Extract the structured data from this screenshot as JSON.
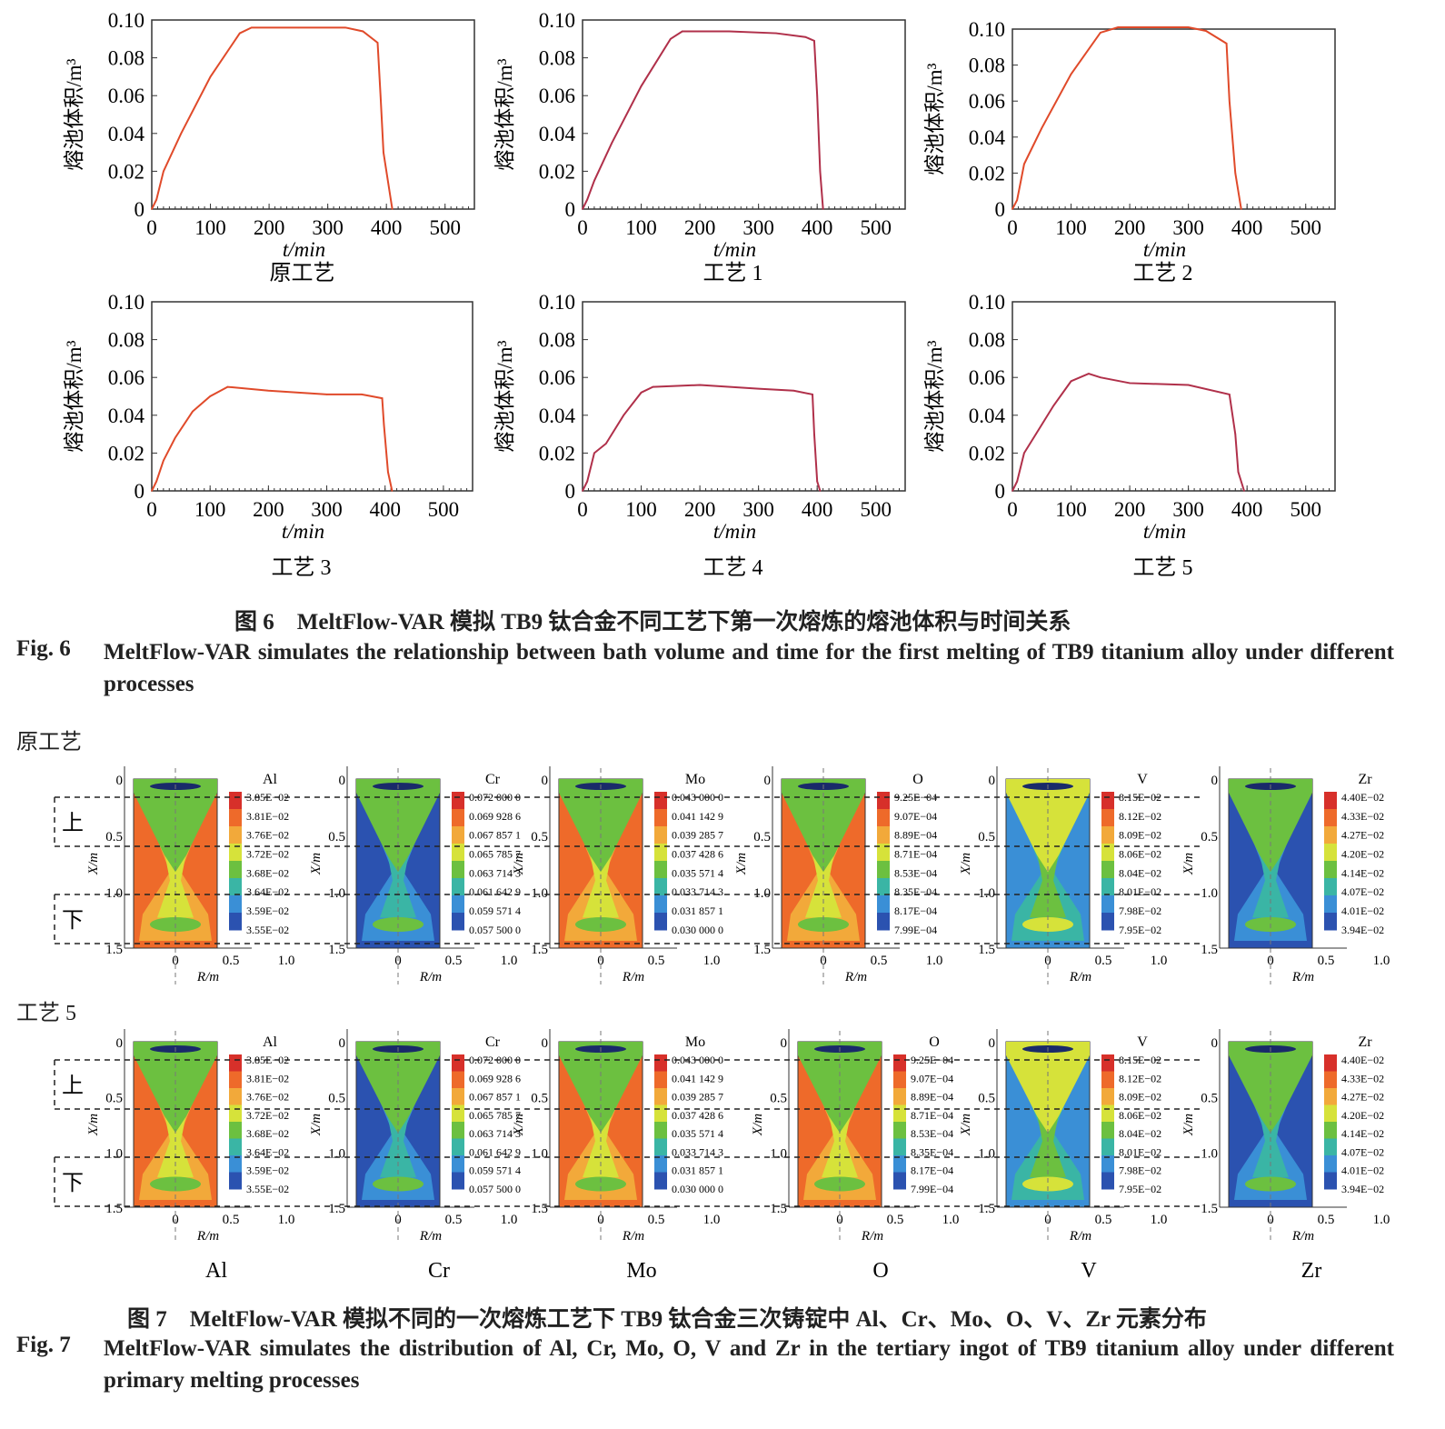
{
  "fig6": {
    "caption_cn": "图 6　MeltFlow-VAR 模拟 TB9 钛合金不同工艺下第一次熔炼的熔池体积与时间关系",
    "caption_en_label": "Fig. 6",
    "caption_en": "MeltFlow-VAR simulates the relationship between bath volume and time for the first melting of TB9 titanium alloy under different processes"
  },
  "chart_data": [
    {
      "type": "line",
      "title": "原工艺",
      "xlabel": "t/min",
      "ylabel": "熔池体积/m³",
      "xlim": [
        0,
        550
      ],
      "ylim": [
        0,
        0.1
      ],
      "xticks": [
        0,
        100,
        200,
        300,
        400,
        500
      ],
      "yticks": [
        "0",
        "0.02",
        "0.04",
        "0.06",
        "0.08",
        "0.10"
      ],
      "color": "#e04a2a",
      "x": [
        0,
        8,
        20,
        50,
        100,
        150,
        170,
        250,
        330,
        360,
        385,
        390,
        395,
        410
      ],
      "y": [
        0,
        0.005,
        0.02,
        0.04,
        0.07,
        0.093,
        0.096,
        0.096,
        0.096,
        0.094,
        0.088,
        0.06,
        0.03,
        0
      ]
    },
    {
      "type": "line",
      "title": "工艺 1",
      "xlabel": "t/min",
      "ylabel": "熔池体积/m³",
      "xlim": [
        0,
        550
      ],
      "ylim": [
        0,
        0.1
      ],
      "xticks": [
        0,
        100,
        200,
        300,
        400,
        500
      ],
      "yticks": [
        "0",
        "0.02",
        "0.04",
        "0.06",
        "0.08",
        "0.10"
      ],
      "color": "#b0304a",
      "x": [
        0,
        8,
        20,
        50,
        100,
        150,
        170,
        250,
        330,
        380,
        395,
        400,
        405,
        410
      ],
      "y": [
        0,
        0.005,
        0.015,
        0.035,
        0.065,
        0.09,
        0.094,
        0.094,
        0.093,
        0.091,
        0.089,
        0.06,
        0.02,
        0
      ]
    },
    {
      "type": "line",
      "title": "工艺 2",
      "xlabel": "t/min",
      "ylabel": "熔池体积/m³",
      "xlim": [
        0,
        550
      ],
      "ylim": [
        0,
        0.1
      ],
      "xticks": [
        0,
        100,
        200,
        300,
        400,
        500
      ],
      "yticks": [
        "0",
        "0.02",
        "0.04",
        "0.06",
        "0.08",
        "0.10"
      ],
      "color": "#e04a2a",
      "x": [
        0,
        8,
        20,
        50,
        100,
        150,
        180,
        250,
        300,
        330,
        365,
        370,
        380,
        390
      ],
      "y": [
        0,
        0.005,
        0.025,
        0.045,
        0.075,
        0.098,
        0.101,
        0.101,
        0.101,
        0.099,
        0.092,
        0.06,
        0.02,
        0
      ]
    },
    {
      "type": "line",
      "title": "工艺 3",
      "xlabel": "t/min",
      "ylabel": "熔池体积/m³",
      "xlim": [
        0,
        550
      ],
      "ylim": [
        0,
        0.1
      ],
      "xticks": [
        0,
        100,
        200,
        300,
        400,
        500
      ],
      "yticks": [
        "0",
        "0.02",
        "0.04",
        "0.06",
        "0.08",
        "0.10"
      ],
      "color": "#e04a2a",
      "x": [
        0,
        8,
        20,
        40,
        70,
        100,
        130,
        200,
        300,
        360,
        395,
        398,
        405,
        412
      ],
      "y": [
        0,
        0.005,
        0.016,
        0.028,
        0.042,
        0.05,
        0.055,
        0.053,
        0.051,
        0.051,
        0.049,
        0.035,
        0.01,
        0
      ]
    },
    {
      "type": "line",
      "title": "工艺 4",
      "xlabel": "t/min",
      "ylabel": "熔池体积/m³",
      "xlim": [
        0,
        550
      ],
      "ylim": [
        0,
        0.1
      ],
      "xticks": [
        0,
        100,
        200,
        300,
        400,
        500
      ],
      "yticks": [
        "0",
        "0.02",
        "0.04",
        "0.06",
        "0.08",
        "0.10"
      ],
      "color": "#b0304a",
      "x": [
        0,
        8,
        20,
        40,
        70,
        100,
        120,
        200,
        300,
        360,
        392,
        395,
        400,
        405
      ],
      "y": [
        0,
        0.005,
        0.02,
        0.025,
        0.04,
        0.052,
        0.055,
        0.056,
        0.054,
        0.053,
        0.051,
        0.03,
        0.005,
        0
      ]
    },
    {
      "type": "line",
      "title": "工艺 5",
      "xlabel": "t/min",
      "ylabel": "熔池体积/m³",
      "xlim": [
        0,
        550
      ],
      "ylim": [
        0,
        0.1
      ],
      "xticks": [
        0,
        100,
        200,
        300,
        400,
        500
      ],
      "yticks": [
        "0",
        "0.02",
        "0.04",
        "0.06",
        "0.08",
        "0.10"
      ],
      "color": "#b0304a",
      "x": [
        0,
        8,
        20,
        40,
        70,
        100,
        130,
        150,
        200,
        300,
        370,
        380,
        385,
        395
      ],
      "y": [
        0,
        0.005,
        0.02,
        0.03,
        0.045,
        0.058,
        0.062,
        0.06,
        0.057,
        0.056,
        0.051,
        0.03,
        0.01,
        0
      ]
    }
  ],
  "fig7": {
    "row_labels": [
      "原工艺",
      "工艺 5"
    ],
    "zone_labels": [
      "上",
      "下"
    ],
    "ylabel": "X/m",
    "xlabel": "R/m",
    "yticks": [
      "0",
      "0.5",
      "1.0",
      "1.5"
    ],
    "xticks": [
      "0",
      "0.5",
      "1.0"
    ],
    "elements": [
      {
        "name": "Al",
        "legend": [
          "3.85E−02",
          "3.81E−02",
          "3.76E−02",
          "3.72E−02",
          "3.68E−02",
          "3.64E−02",
          "3.59E−02",
          "3.55E−02"
        ],
        "scheme": "high"
      },
      {
        "name": "Cr",
        "legend": [
          "0.072 000 0",
          "0.069 928 6",
          "0.067 857 1",
          "0.065 785 7",
          "0.063 714 3",
          "0.061 642 9",
          "0.059 571 4",
          "0.057 500 0"
        ],
        "scheme": "low"
      },
      {
        "name": "Mo",
        "legend": [
          "0.043 000 0",
          "0.041 142 9",
          "0.039 285 7",
          "0.037 428 6",
          "0.035 571 4",
          "0.033 714 3",
          "0.031 857 1",
          "0.030 000 0"
        ],
        "scheme": "high"
      },
      {
        "name": "O",
        "legend": [
          "9.25E−04",
          "9.07E−04",
          "8.89E−04",
          "8.71E−04",
          "8.53E−04",
          "8.35E−04",
          "8.17E−04",
          "7.99E−04"
        ],
        "scheme": "high"
      },
      {
        "name": "V",
        "legend": [
          "8.15E−02",
          "8.12E−02",
          "8.09E−02",
          "8.06E−02",
          "8.04E−02",
          "8.01E−02",
          "7.98E−02",
          "7.95E−02"
        ],
        "scheme": "mid"
      },
      {
        "name": "Zr",
        "legend": [
          "4.40E−02",
          "4.33E−02",
          "4.27E−02",
          "4.20E−02",
          "4.14E−02",
          "4.07E−02",
          "4.01E−02",
          "3.94E−02"
        ],
        "scheme": "low"
      }
    ],
    "caption_cn": "图 7　MeltFlow-VAR 模拟不同的一次熔炼工艺下 TB9 钛合金三次铸锭中 Al、Cr、Mo、O、V、Zr 元素分布",
    "caption_en_label": "Fig. 7",
    "caption_en": "MeltFlow-VAR simulates the distribution of Al, Cr, Mo, O, V and Zr in the tertiary ingot of TB9 titanium alloy under different primary melting processes"
  },
  "colors": {
    "colorbar": [
      "#d7302a",
      "#ee6a2a",
      "#f2a93a",
      "#d6e23a",
      "#6cc040",
      "#3ab5a5",
      "#3a8fd6",
      "#2b52b0"
    ]
  }
}
